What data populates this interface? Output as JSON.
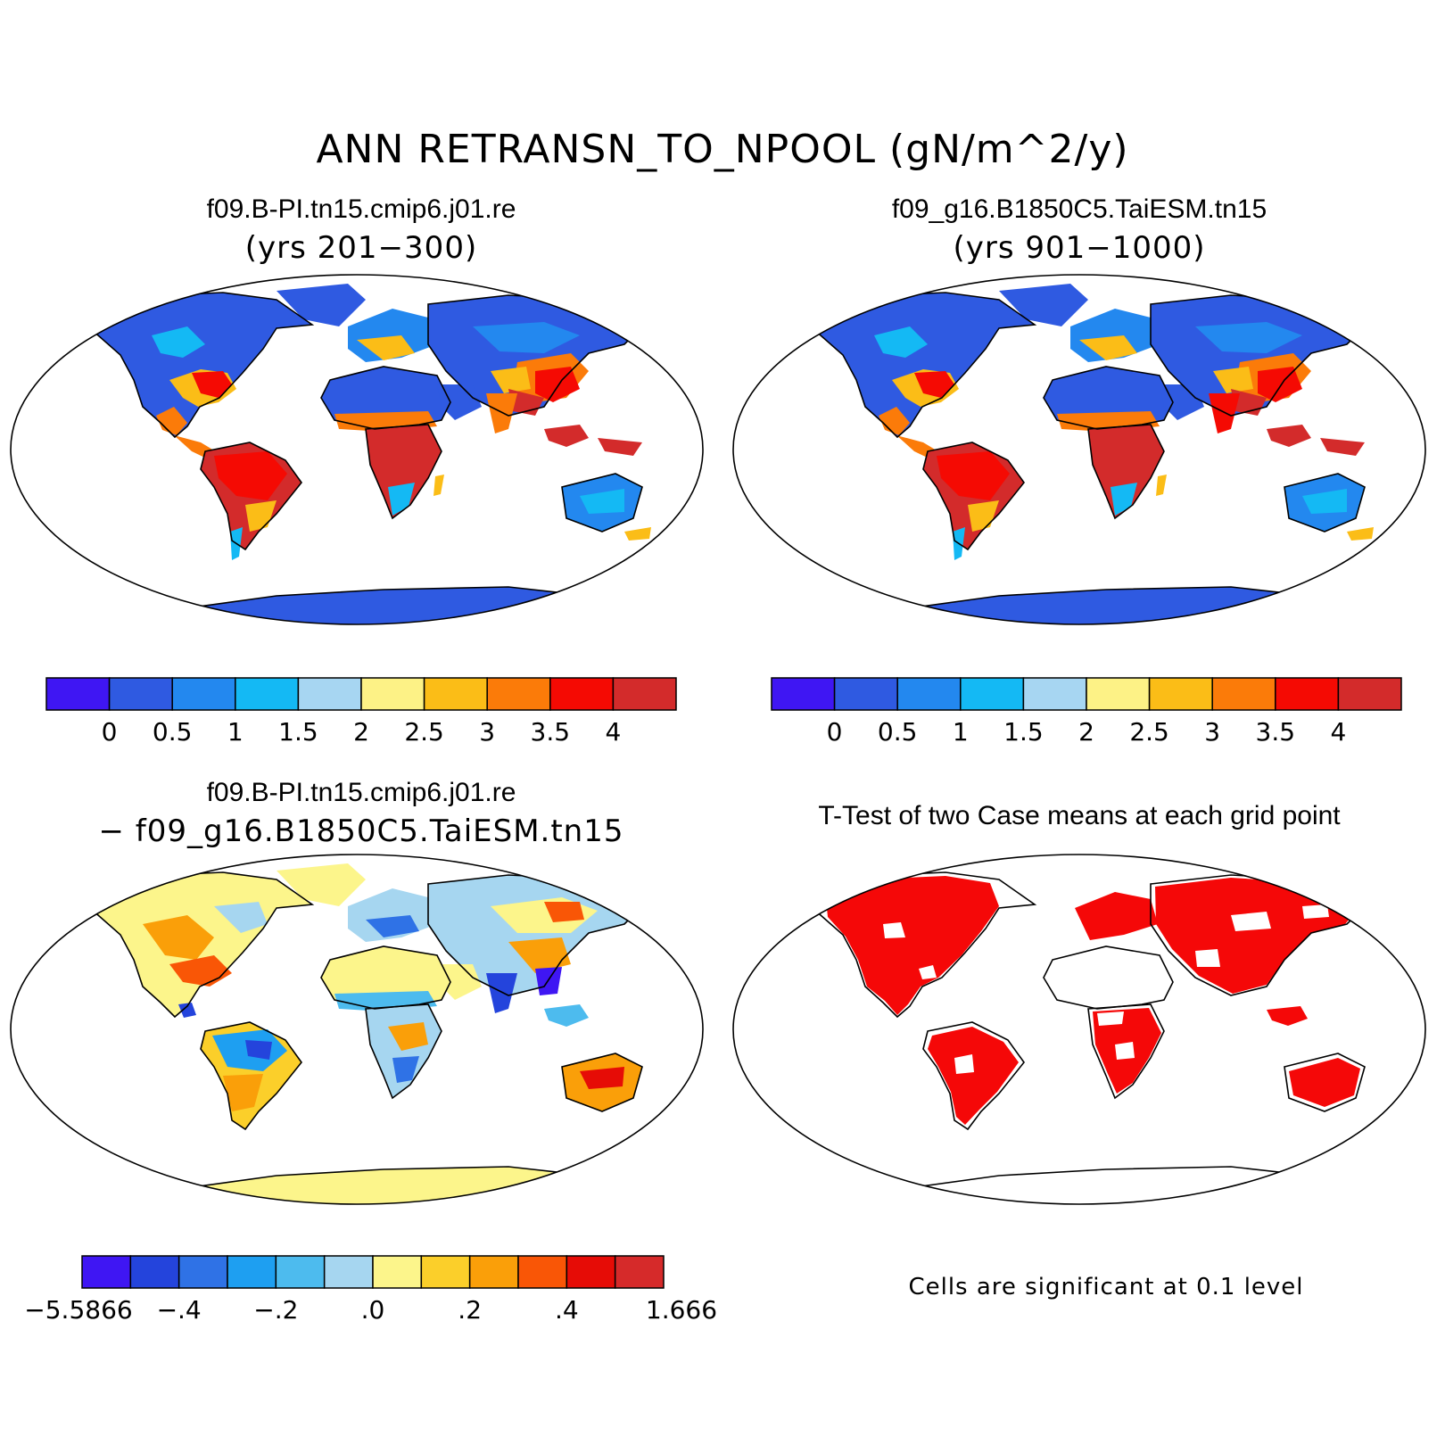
{
  "figure": {
    "title": "ANN RETRANSN_TO_NPOOL (gN/m^2/y)"
  },
  "panels": [
    {
      "title": "f09.B-PI.tn15.cmip6.j01.re",
      "subtitle": "(yrs 201−300)",
      "field": "case1-mean"
    },
    {
      "title": "f09_g16.B1850C5.TaiESM.tn15",
      "subtitle": "(yrs 901−1000)",
      "field": "case2-mean"
    },
    {
      "title": "f09.B-PI.tn15.cmip6.j01.re",
      "subtitle": "− f09_g16.B1850C5.TaiESM.tn15",
      "field": "difference"
    },
    {
      "title": "T-Test of two Case means at each grid point",
      "note": "Cells are significant at 0.1 level",
      "field": "ttest"
    }
  ],
  "colorbars": {
    "mean": {
      "colors": [
        "#3f16f3",
        "#2f5ae1",
        "#2388ef",
        "#14b9f4",
        "#a7d6f2",
        "#fdf286",
        "#fbbd17",
        "#fb7b09",
        "#f50a03",
        "#d32b2b"
      ],
      "tick_labels": [
        "0",
        "0.5",
        "1",
        "1.5",
        "2",
        "2.5",
        "3",
        "3.5",
        "4"
      ]
    },
    "diff": {
      "colors": [
        "#3f16f3",
        "#2444dc",
        "#2f72e6",
        "#1e9ff1",
        "#4dbbee",
        "#a6d6f0",
        "#fcf58b",
        "#fbcf2a",
        "#fa9f09",
        "#f95606",
        "#e60c06",
        "#d62a2a"
      ],
      "tick_labels": [
        "−5.5866",
        "−.4",
        "−.2",
        ".0",
        ".2",
        ".4",
        "1.666"
      ]
    }
  },
  "legend_colors": {
    "significant": "#f50808",
    "ocean": "#ffffff",
    "coastline": "#000000"
  }
}
